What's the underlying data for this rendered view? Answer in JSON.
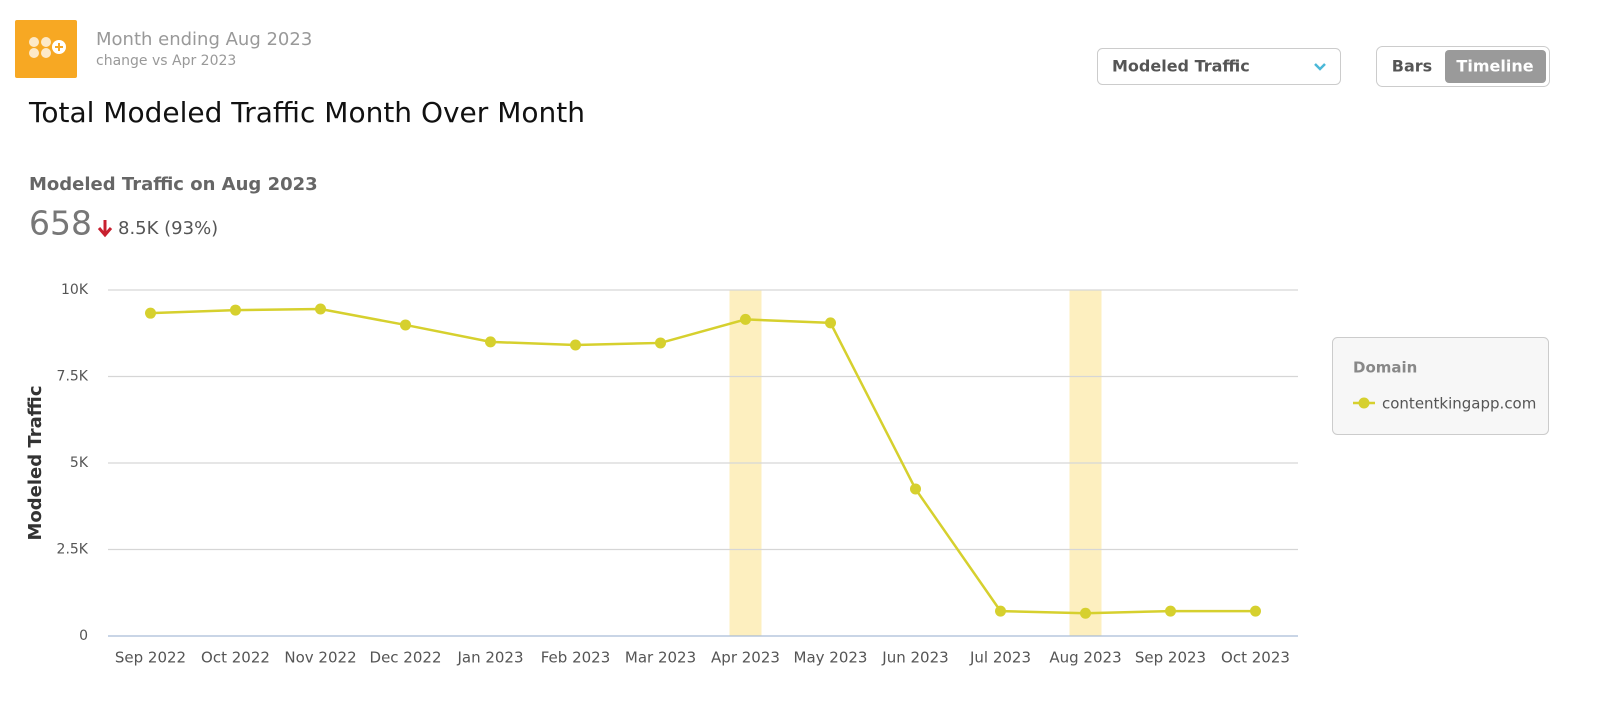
{
  "header": {
    "period": "Month ending Aug 2023",
    "comparison": "change vs Apr 2023",
    "metric_select": "Modeled Traffic",
    "view_options": [
      "Bars",
      "Timeline"
    ],
    "title": "Total Modeled Traffic Month Over Month"
  },
  "summary": {
    "label": "Modeled Traffic on Aug 2023",
    "value": "658",
    "change": "8.5K (93%)"
  },
  "chart_data": {
    "type": "line",
    "y_label": "Modeled Traffic",
    "categories": [
      "Sep 2022",
      "Oct 2022",
      "Nov 2022",
      "Dec 2022",
      "Jan 2023",
      "Feb 2023",
      "Mar 2023",
      "Apr 2023",
      "May 2023",
      "Jun 2023",
      "Jul 2023",
      "Aug 2023",
      "Sep 2023",
      "Oct 2023"
    ],
    "highlight": [
      7,
      11
    ],
    "highlight_color": "#fdefbf",
    "legend_title": "Domain",
    "series": [
      {
        "name": "contentkingapp.com",
        "color": "#d6d02e",
        "values": [
          9330,
          9420,
          9450,
          8990,
          8500,
          8410,
          8470,
          9150,
          9050,
          4250,
          720,
          658,
          720,
          720
        ]
      }
    ],
    "ylim": [
      0,
      10000
    ],
    "yticks": [
      {
        "value": 0,
        "label": "0"
      },
      {
        "value": 2500,
        "label": "2.5K"
      },
      {
        "value": 5000,
        "label": "5K"
      },
      {
        "value": 7500,
        "label": "7.5K"
      },
      {
        "value": 10000,
        "label": "10K"
      }
    ],
    "grid": true
  }
}
